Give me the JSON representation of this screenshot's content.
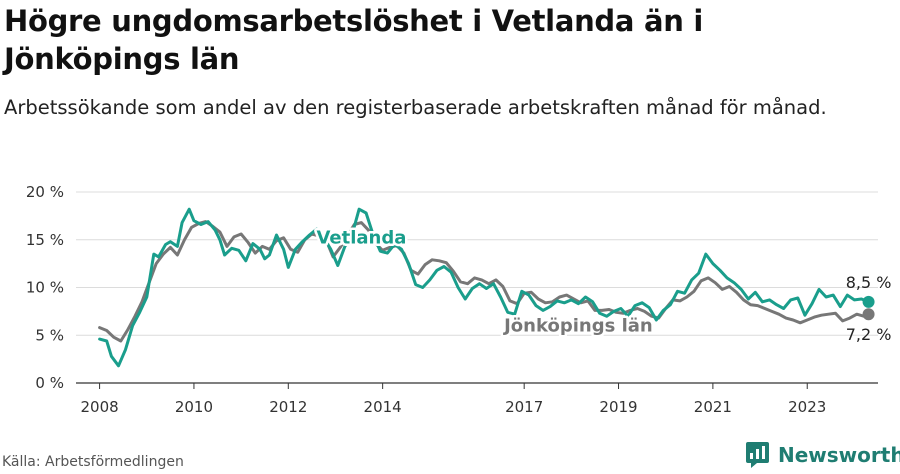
{
  "title": "Högre ungdomsarbetslöshet i Vetlanda än i Jönköpings län",
  "subtitle": "Arbetssökande som andel av den registerbaserade arbetskraften månad för månad.",
  "source": "Källa: Arbetsförmedlingen",
  "logo": {
    "text": "Newsworthy",
    "icon": "newsworthy-logo-icon"
  },
  "colors": {
    "vetlanda": "#1a9e8c",
    "lan": "#777777",
    "grid": "#dcdcdc",
    "axis": "#333333",
    "text": "#333333"
  },
  "chart_data": {
    "type": "line",
    "title": "Högre ungdomsarbetslöshet i Vetlanda än i Jönköpings län",
    "xlabel": "",
    "ylabel": "",
    "ylim": [
      0,
      20
    ],
    "xlim": [
      2007.5,
      2024.5
    ],
    "yticks": [
      0,
      5,
      10,
      15,
      20
    ],
    "ytick_labels": [
      "0 %",
      "5 %",
      "10 %",
      "15 %",
      "20 %"
    ],
    "xticks": [
      2008,
      2010,
      2012,
      2014,
      2017,
      2019,
      2021,
      2023
    ],
    "xtick_labels": [
      "2008",
      "2010",
      "2012",
      "2014",
      "2017",
      "2019",
      "2021",
      "2023"
    ],
    "grid": true,
    "series": [
      {
        "name": "Vetlanda",
        "label": "Vetlanda",
        "end_label": "8,5 %",
        "points": [
          [
            2008.0,
            4.6
          ],
          [
            2008.15,
            4.4
          ],
          [
            2008.25,
            2.8
          ],
          [
            2008.4,
            1.8
          ],
          [
            2008.55,
            3.5
          ],
          [
            2008.7,
            6.0
          ],
          [
            2008.85,
            7.4
          ],
          [
            2009.0,
            9.0
          ],
          [
            2009.15,
            13.5
          ],
          [
            2009.25,
            13.2
          ],
          [
            2009.4,
            14.5
          ],
          [
            2009.5,
            14.8
          ],
          [
            2009.65,
            14.3
          ],
          [
            2009.75,
            16.8
          ],
          [
            2009.9,
            18.2
          ],
          [
            2010.0,
            17.0
          ],
          [
            2010.15,
            16.6
          ],
          [
            2010.3,
            16.9
          ],
          [
            2010.45,
            16.0
          ],
          [
            2010.55,
            15.0
          ],
          [
            2010.65,
            13.4
          ],
          [
            2010.8,
            14.1
          ],
          [
            2010.95,
            13.9
          ],
          [
            2011.1,
            12.8
          ],
          [
            2011.25,
            14.6
          ],
          [
            2011.4,
            14.0
          ],
          [
            2011.5,
            13.0
          ],
          [
            2011.6,
            13.4
          ],
          [
            2011.75,
            15.5
          ],
          [
            2011.9,
            14.0
          ],
          [
            2012.0,
            12.1
          ],
          [
            2012.15,
            14.0
          ],
          [
            2012.3,
            14.8
          ],
          [
            2012.45,
            15.5
          ],
          [
            2012.6,
            16.1
          ],
          [
            2012.75,
            15.2
          ],
          [
            2012.9,
            14.0
          ],
          [
            2013.05,
            12.3
          ],
          [
            2013.2,
            14.3
          ],
          [
            2013.35,
            15.5
          ],
          [
            2013.5,
            18.2
          ],
          [
            2013.65,
            17.8
          ],
          [
            2013.8,
            15.5
          ],
          [
            2013.95,
            13.8
          ],
          [
            2014.1,
            13.6
          ],
          [
            2014.25,
            14.5
          ],
          [
            2014.4,
            14.0
          ],
          [
            2014.55,
            12.5
          ],
          [
            2014.7,
            10.3
          ],
          [
            2014.85,
            10.0
          ],
          [
            2015.0,
            10.8
          ],
          [
            2015.15,
            11.8
          ],
          [
            2015.3,
            12.2
          ],
          [
            2015.45,
            11.6
          ],
          [
            2015.6,
            10.0
          ],
          [
            2015.75,
            8.8
          ],
          [
            2015.9,
            9.9
          ],
          [
            2016.05,
            10.4
          ],
          [
            2016.2,
            9.9
          ],
          [
            2016.35,
            10.4
          ],
          [
            2016.5,
            9.0
          ],
          [
            2016.65,
            7.4
          ],
          [
            2016.8,
            7.2
          ],
          [
            2016.95,
            9.6
          ],
          [
            2017.1,
            9.2
          ],
          [
            2017.25,
            8.1
          ],
          [
            2017.4,
            7.6
          ],
          [
            2017.55,
            8.0
          ],
          [
            2017.7,
            8.6
          ],
          [
            2017.85,
            8.4
          ],
          [
            2018.0,
            8.7
          ],
          [
            2018.15,
            8.3
          ],
          [
            2018.3,
            9.0
          ],
          [
            2018.45,
            8.5
          ],
          [
            2018.6,
            7.3
          ],
          [
            2018.75,
            7.0
          ],
          [
            2018.9,
            7.5
          ],
          [
            2019.05,
            7.8
          ],
          [
            2019.2,
            7.0
          ],
          [
            2019.35,
            8.1
          ],
          [
            2019.5,
            8.4
          ],
          [
            2019.65,
            7.9
          ],
          [
            2019.8,
            6.6
          ],
          [
            2019.95,
            7.6
          ],
          [
            2020.1,
            8.2
          ],
          [
            2020.25,
            9.6
          ],
          [
            2020.4,
            9.4
          ],
          [
            2020.55,
            10.8
          ],
          [
            2020.7,
            11.5
          ],
          [
            2020.85,
            13.5
          ],
          [
            2021.0,
            12.5
          ],
          [
            2021.15,
            11.8
          ],
          [
            2021.3,
            11.0
          ],
          [
            2021.45,
            10.5
          ],
          [
            2021.6,
            9.8
          ],
          [
            2021.75,
            8.8
          ],
          [
            2021.9,
            9.5
          ],
          [
            2022.05,
            8.5
          ],
          [
            2022.2,
            8.7
          ],
          [
            2022.35,
            8.2
          ],
          [
            2022.5,
            7.8
          ],
          [
            2022.65,
            8.7
          ],
          [
            2022.8,
            8.9
          ],
          [
            2022.95,
            7.1
          ],
          [
            2023.1,
            8.3
          ],
          [
            2023.25,
            9.8
          ],
          [
            2023.4,
            9.0
          ],
          [
            2023.55,
            9.2
          ],
          [
            2023.7,
            8.0
          ],
          [
            2023.85,
            9.2
          ],
          [
            2024.0,
            8.7
          ],
          [
            2024.15,
            8.8
          ],
          [
            2024.3,
            8.5
          ]
        ]
      },
      {
        "name": "Jönköpings län",
        "label": "Jönköpings län",
        "end_label": "7,2 %",
        "points": [
          [
            2008.0,
            5.8
          ],
          [
            2008.15,
            5.5
          ],
          [
            2008.3,
            4.8
          ],
          [
            2008.45,
            4.4
          ],
          [
            2008.6,
            5.6
          ],
          [
            2008.75,
            7.0
          ],
          [
            2008.9,
            8.5
          ],
          [
            2009.05,
            10.5
          ],
          [
            2009.2,
            12.5
          ],
          [
            2009.35,
            13.5
          ],
          [
            2009.5,
            14.2
          ],
          [
            2009.65,
            13.4
          ],
          [
            2009.8,
            15.0
          ],
          [
            2009.95,
            16.3
          ],
          [
            2010.1,
            16.7
          ],
          [
            2010.25,
            16.9
          ],
          [
            2010.4,
            16.4
          ],
          [
            2010.55,
            15.8
          ],
          [
            2010.7,
            14.3
          ],
          [
            2010.85,
            15.3
          ],
          [
            2011.0,
            15.6
          ],
          [
            2011.15,
            14.7
          ],
          [
            2011.3,
            13.6
          ],
          [
            2011.45,
            14.3
          ],
          [
            2011.6,
            14.0
          ],
          [
            2011.75,
            14.9
          ],
          [
            2011.9,
            15.2
          ],
          [
            2012.05,
            14.0
          ],
          [
            2012.2,
            13.7
          ],
          [
            2012.35,
            15.0
          ],
          [
            2012.5,
            15.6
          ],
          [
            2012.65,
            15.4
          ],
          [
            2012.8,
            15.0
          ],
          [
            2012.95,
            13.2
          ],
          [
            2013.1,
            14.2
          ],
          [
            2013.25,
            15.4
          ],
          [
            2013.4,
            16.6
          ],
          [
            2013.55,
            16.8
          ],
          [
            2013.7,
            16.0
          ],
          [
            2013.85,
            14.6
          ],
          [
            2014.0,
            13.9
          ],
          [
            2014.15,
            14.2
          ],
          [
            2014.3,
            14.4
          ],
          [
            2014.45,
            13.6
          ],
          [
            2014.6,
            11.8
          ],
          [
            2014.75,
            11.4
          ],
          [
            2014.9,
            12.4
          ],
          [
            2015.05,
            12.9
          ],
          [
            2015.2,
            12.8
          ],
          [
            2015.35,
            12.6
          ],
          [
            2015.5,
            11.7
          ],
          [
            2015.65,
            10.6
          ],
          [
            2015.8,
            10.4
          ],
          [
            2015.95,
            11.0
          ],
          [
            2016.1,
            10.8
          ],
          [
            2016.25,
            10.4
          ],
          [
            2016.4,
            10.8
          ],
          [
            2016.55,
            10.1
          ],
          [
            2016.7,
            8.6
          ],
          [
            2016.85,
            8.3
          ],
          [
            2017.0,
            9.4
          ],
          [
            2017.15,
            9.5
          ],
          [
            2017.3,
            8.8
          ],
          [
            2017.45,
            8.4
          ],
          [
            2017.6,
            8.5
          ],
          [
            2017.75,
            9.0
          ],
          [
            2017.9,
            9.2
          ],
          [
            2018.05,
            8.8
          ],
          [
            2018.2,
            8.4
          ],
          [
            2018.35,
            8.6
          ],
          [
            2018.5,
            7.6
          ],
          [
            2018.65,
            7.6
          ],
          [
            2018.8,
            7.7
          ],
          [
            2018.95,
            7.4
          ],
          [
            2019.1,
            7.3
          ],
          [
            2019.25,
            7.6
          ],
          [
            2019.4,
            7.8
          ],
          [
            2019.55,
            7.5
          ],
          [
            2019.7,
            7.0
          ],
          [
            2019.85,
            6.8
          ],
          [
            2020.0,
            7.8
          ],
          [
            2020.15,
            8.7
          ],
          [
            2020.3,
            8.6
          ],
          [
            2020.45,
            9.0
          ],
          [
            2020.6,
            9.6
          ],
          [
            2020.75,
            10.7
          ],
          [
            2020.9,
            11.0
          ],
          [
            2021.05,
            10.5
          ],
          [
            2021.2,
            9.8
          ],
          [
            2021.35,
            10.1
          ],
          [
            2021.5,
            9.5
          ],
          [
            2021.65,
            8.7
          ],
          [
            2021.8,
            8.2
          ],
          [
            2021.95,
            8.1
          ],
          [
            2022.1,
            7.8
          ],
          [
            2022.25,
            7.5
          ],
          [
            2022.4,
            7.2
          ],
          [
            2022.55,
            6.8
          ],
          [
            2022.7,
            6.6
          ],
          [
            2022.85,
            6.3
          ],
          [
            2023.0,
            6.6
          ],
          [
            2023.15,
            6.9
          ],
          [
            2023.3,
            7.1
          ],
          [
            2023.45,
            7.2
          ],
          [
            2023.6,
            7.3
          ],
          [
            2023.75,
            6.5
          ],
          [
            2023.9,
            6.8
          ],
          [
            2024.05,
            7.2
          ],
          [
            2024.2,
            7.0
          ],
          [
            2024.3,
            7.2
          ]
        ]
      }
    ]
  }
}
